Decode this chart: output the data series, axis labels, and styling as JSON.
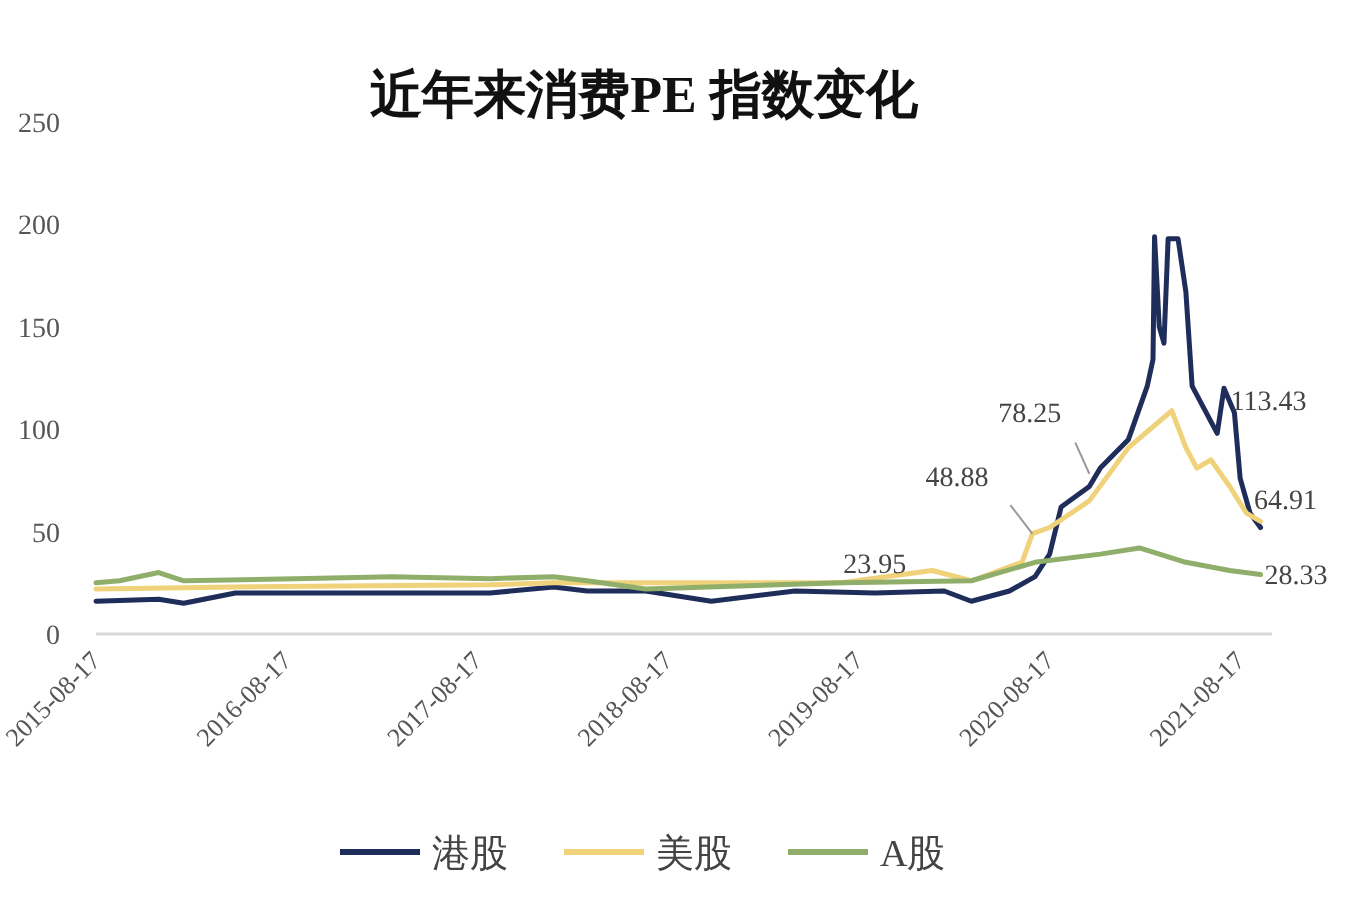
{
  "chart_data": {
    "type": "line",
    "title": "近年来消费PE 指数变化",
    "series": [
      {
        "name": "港股",
        "color": "#1f2d5a",
        "x": [
          "2015-08-17",
          "2015-12-15",
          "2016-02-01",
          "2016-05-10",
          "2017-03-05",
          "2017-09-10",
          "2018-01-10",
          "2018-03-15",
          "2018-07-05",
          "2018-11-08",
          "2019-04-17",
          "2019-09-17",
          "2020-01-28",
          "2020-03-20",
          "2020-06-01",
          "2020-07-20",
          "2020-08-17",
          "2020-09-08",
          "2020-11-01",
          "2020-11-22",
          "2021-01-15",
          "2021-02-20",
          "2021-03-03",
          "2021-03-06",
          "2021-03-15",
          "2021-03-24",
          "2021-04-01",
          "2021-04-20",
          "2021-05-05",
          "2021-05-17",
          "2021-07-04",
          "2021-07-17",
          "2021-08-06",
          "2021-08-17",
          "2021-09-05",
          "2021-09-25"
        ],
        "values": [
          16,
          17,
          15,
          20,
          20,
          20,
          23,
          21,
          21,
          16,
          21,
          20,
          21,
          16,
          21,
          28,
          39,
          62,
          72,
          81,
          95,
          121,
          134,
          194,
          150,
          142,
          193,
          193,
          167,
          121,
          98,
          120,
          108,
          76,
          59,
          52
        ]
      },
      {
        "name": "美股",
        "color": "#efd27a",
        "x": [
          "2015-08-17",
          "2016-05-10",
          "2017-09-10",
          "2018-01-10",
          "2018-07-05",
          "2019-07-15",
          "2020-01-05",
          "2020-03-20",
          "2020-06-25",
          "2020-07-15",
          "2020-08-17",
          "2020-11-01",
          "2021-01-15",
          "2021-04-08",
          "2021-05-05",
          "2021-05-26",
          "2021-06-22",
          "2021-07-28",
          "2021-08-29",
          "2021-09-25"
        ],
        "values": [
          22,
          23,
          24,
          25,
          25,
          25,
          31,
          26,
          35,
          49,
          52,
          65,
          91,
          109,
          91,
          81,
          85,
          72,
          59,
          55
        ]
      },
      {
        "name": "A股",
        "color": "#8fae6a",
        "x": [
          "2015-08-17",
          "2015-10-01",
          "2015-12-15",
          "2016-02-01",
          "2016-09-01",
          "2017-03-05",
          "2017-09-10",
          "2018-01-10",
          "2018-03-15",
          "2018-07-05",
          "2019-07-15",
          "2020-03-20",
          "2020-07-20",
          "2020-11-22",
          "2021-02-05",
          "2021-05-05",
          "2021-07-28",
          "2021-09-25"
        ],
        "values": [
          25,
          26,
          30,
          26,
          27,
          28,
          27,
          28,
          26,
          22,
          25,
          26,
          35,
          39,
          42,
          35,
          31,
          29
        ]
      }
    ],
    "xlim": [
      "2015-08-17",
      "2021-10-17"
    ],
    "xticks": [
      "2015-08-17",
      "2016-08-17",
      "2017-08-17",
      "2018-08-17",
      "2019-08-17",
      "2020-08-17",
      "2021-08-17"
    ],
    "ylim": [
      0,
      250
    ],
    "yticks": [
      0,
      50,
      100,
      150,
      200,
      250
    ],
    "grid": false,
    "legend": "bottom",
    "annotations": [
      {
        "text": "23.95",
        "x": "2019-09-17",
        "y": 23.95
      },
      {
        "text": "48.88",
        "x": "2020-07-15",
        "y": 48.88
      },
      {
        "text": "78.25",
        "x": "2020-11-01",
        "y": 78.25
      },
      {
        "text": "113.43",
        "x": "2021-07-22",
        "y": 113.43
      },
      {
        "text": "64.91",
        "x": "2021-09-05",
        "y": 64.91
      },
      {
        "text": "28.33",
        "x": "2021-09-25",
        "y": 28.33
      }
    ]
  }
}
